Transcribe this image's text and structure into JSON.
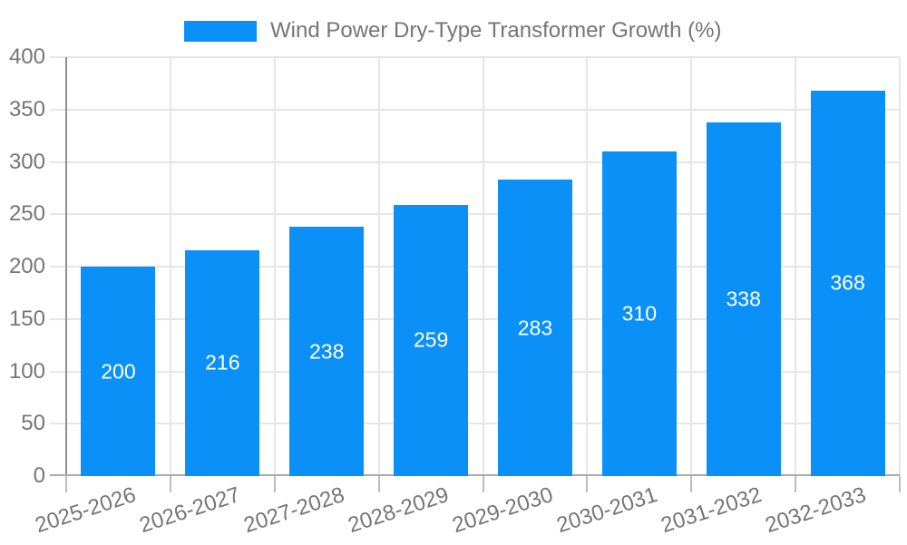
{
  "chart_data": {
    "type": "bar",
    "title": "Wind Power Dry-Type Transformer Growth (%)",
    "categories": [
      "2025-2026",
      "2026-2027",
      "2027-2028",
      "2028-2029",
      "2029-2030",
      "2030-2031",
      "2031-2032",
      "2032-2033"
    ],
    "values": [
      200,
      216,
      238,
      259,
      283,
      310,
      338,
      368
    ],
    "series": [
      {
        "name": "Wind Power Dry-Type Transformer Growth (%)",
        "values": [
          200,
          216,
          238,
          259,
          283,
          310,
          338,
          368
        ]
      }
    ],
    "xlabel": "",
    "ylabel": "",
    "ylim": [
      0,
      400
    ],
    "ytick_step": 50,
    "yticks": [
      0,
      50,
      100,
      150,
      200,
      250,
      300,
      350,
      400
    ],
    "grid": true,
    "legend_position": "top",
    "bar_value_labels_shown": true,
    "x_label_rotation_deg": -18,
    "colors": {
      "bar": "#0b90f8",
      "grid": "#e6e6e6",
      "axis": "#8f8f8f",
      "baseline": "#ababab",
      "tick": "#bdbdbd",
      "text": "#757575",
      "value_label": "#ffffff"
    }
  }
}
